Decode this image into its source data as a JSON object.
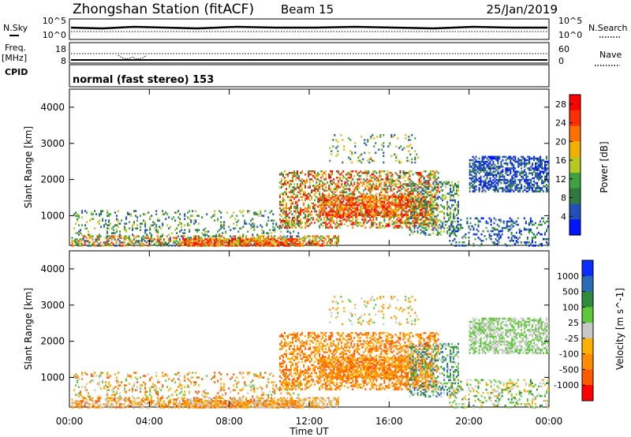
{
  "header": {
    "station": "Zhongshan Station (fitACF)",
    "beam": "Beam 15",
    "date": "25/Jan/2019"
  },
  "strip": {
    "nsky_label": "N.Sky",
    "nsearch_label": "N.Search",
    "nsky_ticks": [
      "10^5",
      "10^0"
    ],
    "nsearch_ticks": [
      "10^5",
      "10^0"
    ],
    "freq_label": "Freq.",
    "freq_unit": "[MHz]",
    "freq_ticks": [
      "18",
      "8"
    ],
    "nave_label": "Nave",
    "nave_ticks": [
      "60",
      "0"
    ],
    "cpid_label": "CPID",
    "cpid_text": "normal (fast stereo) 153"
  },
  "colors": {
    "power_scale": [
      "#0014ff",
      "#2050b8",
      "#2e7a40",
      "#3fa23f",
      "#b7c820",
      "#f0b000",
      "#ff7000",
      "#ff3000",
      "#ff0000"
    ],
    "velocity_scale": [
      "#ff0000",
      "#ff5a00",
      "#ff8c00",
      "#ffb000",
      "#c8c8c8",
      "#5ec83a",
      "#2e8a3c",
      "#2a6bb8",
      "#0a2cff"
    ]
  },
  "chart_data": [
    {
      "type": "heatmap",
      "title": "Power",
      "ylabel": "Slant Range [km]",
      "xlabel": "Time UT",
      "x_ticks": [
        "00:00",
        "04:00",
        "08:00",
        "12:00",
        "16:00",
        "20:00",
        "00:00"
      ],
      "x_range_hours": [
        0,
        24
      ],
      "y_ticks": [
        1000,
        2000,
        3000,
        4000
      ],
      "ylim": [
        180,
        4500
      ],
      "colorbar_label": "Power [dB]",
      "colorbar_ticks": [
        4,
        8,
        12,
        16,
        20,
        24,
        28
      ],
      "colorbar_range": [
        0,
        30
      ]
    },
    {
      "type": "heatmap",
      "title": "Velocity",
      "ylabel": "Slant Range [km]",
      "xlabel": "Time UT",
      "x_ticks": [
        "00:00",
        "04:00",
        "08:00",
        "12:00",
        "16:00",
        "20:00",
        "00:00"
      ],
      "x_range_hours": [
        0,
        24
      ],
      "y_ticks": [
        1000,
        2000,
        3000,
        4000
      ],
      "ylim": [
        180,
        4500
      ],
      "colorbar_label": "Velocity [m s^-1]",
      "colorbar_ticks": [
        "1000",
        "500",
        "100",
        "25",
        "-25",
        "-100",
        "-500",
        "-1000"
      ]
    }
  ]
}
